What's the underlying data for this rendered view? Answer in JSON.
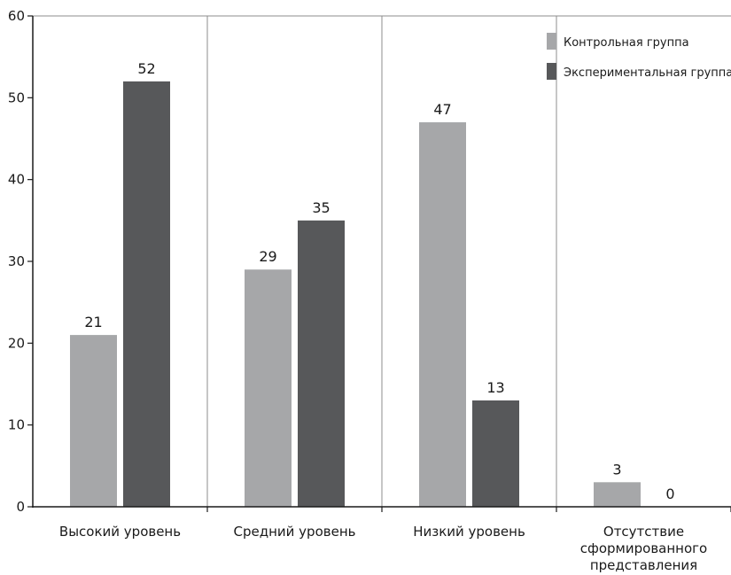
{
  "chart_data": {
    "type": "bar",
    "categories": [
      [
        "Высокий уровень"
      ],
      [
        "Средний уровень"
      ],
      [
        "Низкий уровень"
      ],
      [
        "Отсутствие",
        "сформированного",
        "представления"
      ]
    ],
    "series": [
      {
        "name": "Контрольная группа",
        "color": "#a6a7a9",
        "values": [
          21,
          29,
          47,
          3
        ]
      },
      {
        "name": "Экспериментальная группа",
        "color": "#57585a",
        "values": [
          52,
          35,
          13,
          0
        ]
      }
    ],
    "ylim": [
      0,
      60
    ],
    "yticks": [
      0,
      10,
      20,
      30,
      40,
      50,
      60
    ],
    "grid": "vertical category separators",
    "legend_position": "top-right",
    "title": "",
    "xlabel": "",
    "ylabel": ""
  }
}
